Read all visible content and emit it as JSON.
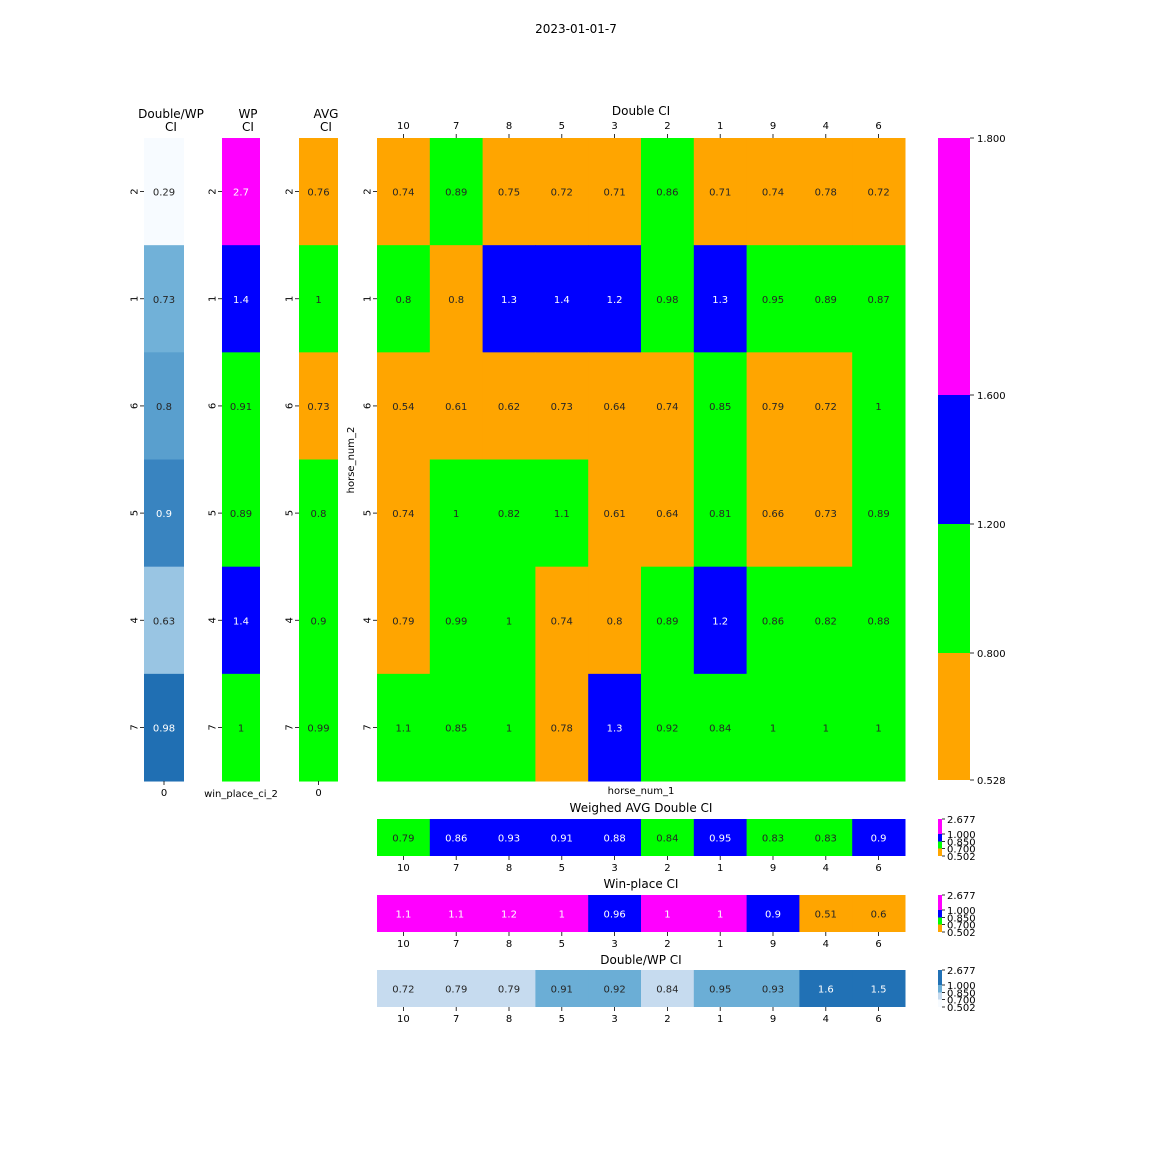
{
  "figure_title": "2023-01-01-7",
  "colors": {
    "orange": "#FFA500",
    "green": "#00FF00",
    "blue": "#0000FF",
    "magenta": "#FF00FF",
    "blues_lightest": "#F7FBFF",
    "blues_light": "#C6DBEF",
    "blues_mid": "#6BAED6",
    "blues_dark": "#2171B5"
  },
  "chart_data": [
    {
      "type": "heatmap",
      "title": "Double/WP\nCI",
      "y": [
        "2",
        "1",
        "6",
        "5",
        "4",
        "7"
      ],
      "x": [
        "0"
      ],
      "xlabel": "",
      "values": [
        [
          0.29
        ],
        [
          0.73
        ],
        [
          0.8
        ],
        [
          0.9
        ],
        [
          0.63
        ],
        [
          0.98
        ]
      ],
      "labels": [
        [
          "0.29"
        ],
        [
          "0.73"
        ],
        [
          "0.8"
        ],
        [
          "0.9"
        ],
        [
          "0.63"
        ],
        [
          "0.98"
        ]
      ],
      "colormap": "blues"
    },
    {
      "type": "heatmap",
      "title": "WP\nCI",
      "y": [
        "2",
        "1",
        "6",
        "5",
        "4",
        "7"
      ],
      "x": [],
      "xlabel": "win_place_ci_2",
      "values": [
        [
          2.7
        ],
        [
          1.4
        ],
        [
          0.91
        ],
        [
          0.89
        ],
        [
          1.4
        ],
        [
          1
        ]
      ],
      "labels": [
        [
          "2.7"
        ],
        [
          "1.4"
        ],
        [
          "0.91"
        ],
        [
          "0.89"
        ],
        [
          "1.4"
        ],
        [
          "1"
        ]
      ],
      "colormap": "discrete"
    },
    {
      "type": "heatmap",
      "title": "AVG\nCI",
      "y": [
        "2",
        "1",
        "6",
        "5",
        "4",
        "7"
      ],
      "x": [
        "0"
      ],
      "xlabel": "",
      "values": [
        [
          0.76
        ],
        [
          1
        ],
        [
          0.73
        ],
        [
          0.8
        ],
        [
          0.9
        ],
        [
          0.99
        ]
      ],
      "labels": [
        [
          "0.76"
        ],
        [
          "1"
        ],
        [
          "0.73"
        ],
        [
          "0.8"
        ],
        [
          "0.9"
        ],
        [
          "0.99"
        ]
      ],
      "colormap": "discrete"
    },
    {
      "type": "heatmap",
      "title": "Double CI",
      "x": [
        "10",
        "7",
        "8",
        "5",
        "3",
        "2",
        "1",
        "9",
        "4",
        "6"
      ],
      "y": [
        "2",
        "1",
        "6",
        "5",
        "4",
        "7"
      ],
      "xlabel": "horse_num_1",
      "ylabel": "horse_num_2",
      "values": [
        [
          0.74,
          0.89,
          0.75,
          0.72,
          0.71,
          0.86,
          0.71,
          0.74,
          0.78,
          0.72
        ],
        [
          0.8,
          0.8,
          1.3,
          1.4,
          1.2,
          0.98,
          1.3,
          0.95,
          0.89,
          0.87
        ],
        [
          0.54,
          0.61,
          0.62,
          0.73,
          0.64,
          0.74,
          0.85,
          0.79,
          0.72,
          1
        ],
        [
          0.74,
          1,
          0.82,
          1.1,
          0.61,
          0.64,
          0.81,
          0.66,
          0.73,
          0.89
        ],
        [
          0.79,
          0.99,
          1,
          0.74,
          0.8,
          0.89,
          1.2,
          0.86,
          0.82,
          0.88
        ],
        [
          1.1,
          0.85,
          1,
          0.78,
          1.3,
          0.92,
          0.84,
          1,
          1,
          1
        ]
      ],
      "cell_colors": [
        [
          "orange",
          "green",
          "orange",
          "orange",
          "orange",
          "green",
          "orange",
          "orange",
          "orange",
          "orange"
        ],
        [
          "green",
          "orange",
          "blue",
          "blue",
          "blue",
          "green",
          "blue",
          "green",
          "green",
          "green"
        ],
        [
          "orange",
          "orange",
          "orange",
          "orange",
          "orange",
          "orange",
          "green",
          "orange",
          "orange",
          "green"
        ],
        [
          "orange",
          "green",
          "green",
          "green",
          "orange",
          "orange",
          "green",
          "orange",
          "orange",
          "green"
        ],
        [
          "orange",
          "green",
          "green",
          "orange",
          "orange",
          "green",
          "blue",
          "green",
          "green",
          "green"
        ],
        [
          "green",
          "green",
          "green",
          "orange",
          "blue",
          "green",
          "green",
          "green",
          "green",
          "green"
        ]
      ],
      "colorbar": {
        "ticks": [
          "0.528",
          "0.800",
          "1.200",
          "1.600",
          "1.800"
        ],
        "segments": [
          {
            "color": "orange",
            "from": 0.528,
            "to": 0.8
          },
          {
            "color": "green",
            "from": 0.8,
            "to": 1.2
          },
          {
            "color": "blue",
            "from": 1.2,
            "to": 1.6
          },
          {
            "color": "magenta",
            "from": 1.6,
            "to": 1.8
          }
        ]
      }
    },
    {
      "type": "heatmap",
      "title": "Weighed AVG Double CI",
      "x": [
        "10",
        "7",
        "8",
        "5",
        "3",
        "2",
        "1",
        "9",
        "4",
        "6"
      ],
      "values": [
        0.79,
        0.86,
        0.93,
        0.91,
        0.88,
        0.84,
        0.95,
        0.83,
        0.83,
        0.9
      ],
      "labels": [
        "0.79",
        "0.86",
        "0.93",
        "0.91",
        "0.88",
        "0.84",
        "0.95",
        "0.83",
        "0.83",
        "0.9"
      ],
      "cell_colors": [
        "green",
        "blue",
        "blue",
        "blue",
        "blue",
        "green",
        "blue",
        "green",
        "green",
        "blue"
      ],
      "colorbar": {
        "ticks": [
          "0.502",
          "0.700",
          "0.850",
          "1.000",
          "2.677"
        ],
        "colors": [
          "orange",
          "green",
          "blue",
          "magenta"
        ]
      }
    },
    {
      "type": "heatmap",
      "title": "Win-place CI",
      "x": [
        "10",
        "7",
        "8",
        "5",
        "3",
        "2",
        "1",
        "9",
        "4",
        "6"
      ],
      "values": [
        1.1,
        1.1,
        1.2,
        1,
        0.96,
        1,
        1,
        0.9,
        0.51,
        0.6
      ],
      "labels": [
        "1.1",
        "1.1",
        "1.2",
        "1",
        "0.96",
        "1",
        "1",
        "0.9",
        "0.51",
        "0.6"
      ],
      "cell_colors": [
        "magenta",
        "magenta",
        "magenta",
        "magenta",
        "blue",
        "magenta",
        "magenta",
        "blue",
        "orange",
        "orange"
      ],
      "colorbar": {
        "ticks": [
          "0.502",
          "0.700",
          "0.850",
          "1.000",
          "2.677"
        ],
        "colors": [
          "orange",
          "green",
          "blue",
          "magenta"
        ]
      }
    },
    {
      "type": "heatmap",
      "title": "Double/WP CI",
      "x": [
        "10",
        "7",
        "8",
        "5",
        "3",
        "2",
        "1",
        "9",
        "4",
        "6"
      ],
      "values": [
        0.72,
        0.79,
        0.79,
        0.91,
        0.92,
        0.84,
        0.95,
        0.93,
        1.6,
        1.5
      ],
      "labels": [
        "0.72",
        "0.79",
        "0.79",
        "0.91",
        "0.92",
        "0.84",
        "0.95",
        "0.93",
        "1.6",
        "1.5"
      ],
      "cell_colors": [
        "blues_light",
        "blues_light",
        "blues_light",
        "blues_mid",
        "blues_mid",
        "blues_light",
        "blues_mid",
        "blues_mid",
        "blues_dark",
        "blues_dark"
      ],
      "colorbar": {
        "ticks": [
          "0.502",
          "0.700",
          "0.850",
          "1.000",
          "2.677"
        ],
        "colors": [
          "blues_lightest",
          "blues_light",
          "blues_mid",
          "blues_dark"
        ]
      }
    }
  ]
}
